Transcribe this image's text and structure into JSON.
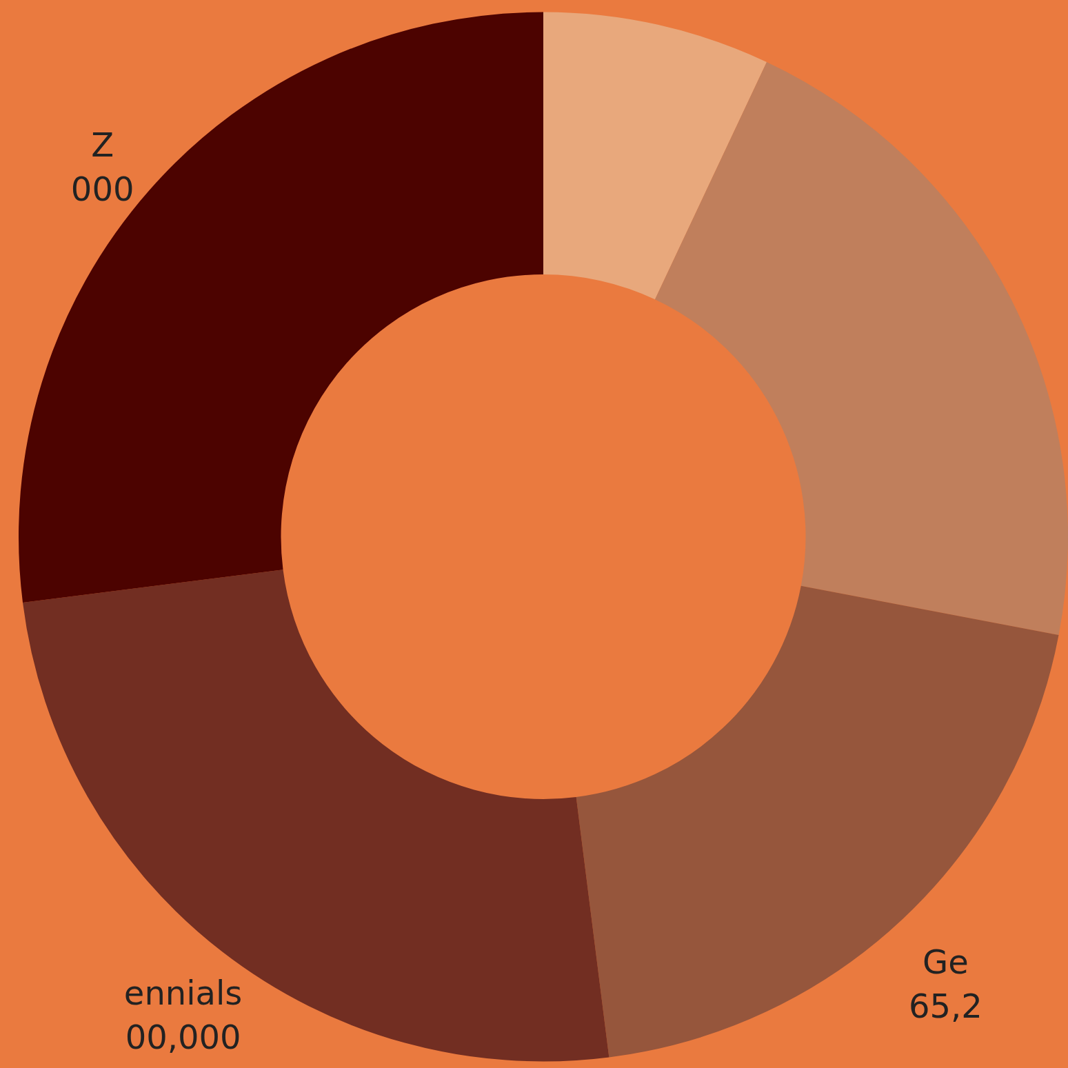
{
  "chart_data": {
    "type": "donut",
    "categories": [
      null,
      null,
      "Ge\n65,2",
      "ennials\n00,000",
      "Z\n000"
    ],
    "values": [
      7,
      21,
      20,
      25,
      27
    ],
    "colors": [
      "#e8a87c",
      "#c07f5c",
      "#96563c",
      "#722e22",
      "#4c0300"
    ],
    "legend": false
  }
}
